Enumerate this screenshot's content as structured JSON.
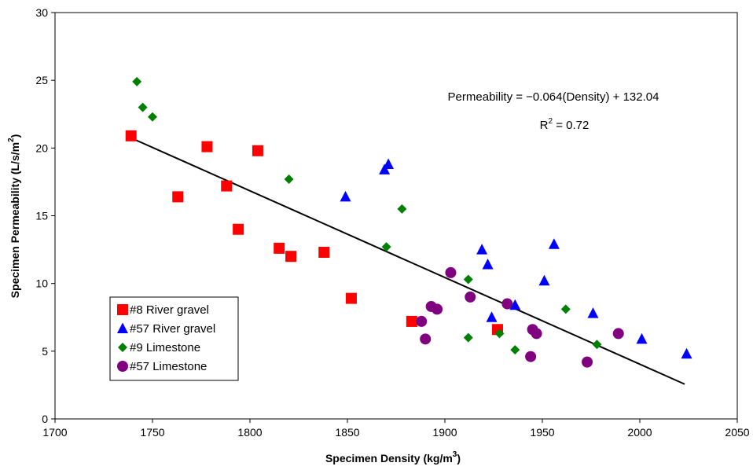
{
  "chart_data": {
    "type": "scatter",
    "title": "",
    "xlabel": "Specimen Density (kg/m",
    "xlabel_sup": "3",
    "xlabel_tail": ")",
    "ylabel": "Specimen Permeability (L/s/m",
    "ylabel_sup": "2",
    "ylabel_tail": ")",
    "xlim": [
      1700,
      2050
    ],
    "ylim": [
      0,
      30
    ],
    "x_ticks": [
      "1700",
      "1750",
      "1800",
      "1850",
      "1900",
      "1950",
      "2000",
      "2050"
    ],
    "y_ticks": [
      "0",
      "5",
      "10",
      "15",
      "20",
      "25",
      "30"
    ],
    "grid": false,
    "legend_position": "bottom-left",
    "series": [
      {
        "name": "#8 River gravel",
        "marker": "square",
        "color": "#ff0000",
        "points": [
          [
            1739,
            20.9
          ],
          [
            1763,
            16.4
          ],
          [
            1778,
            20.1
          ],
          [
            1788,
            17.2
          ],
          [
            1794,
            14.0
          ],
          [
            1804,
            19.8
          ],
          [
            1815,
            12.6
          ],
          [
            1821,
            12.0
          ],
          [
            1838,
            12.3
          ],
          [
            1852,
            8.9
          ],
          [
            1883,
            7.2
          ],
          [
            1927,
            6.6
          ]
        ]
      },
      {
        "name": "#57 River gravel",
        "marker": "triangle",
        "color": "#0000ff",
        "points": [
          [
            1849,
            16.4
          ],
          [
            1869,
            18.4
          ],
          [
            1871,
            18.8
          ],
          [
            1919,
            12.5
          ],
          [
            1922,
            11.4
          ],
          [
            1924,
            7.5
          ],
          [
            1936,
            8.4
          ],
          [
            1951,
            10.2
          ],
          [
            1956,
            12.9
          ],
          [
            1976,
            7.8
          ],
          [
            2001,
            5.9
          ],
          [
            2024,
            4.8
          ]
        ]
      },
      {
        "name": "#9 Limestone",
        "marker": "diamond",
        "color": "#008000",
        "points": [
          [
            1742,
            24.9
          ],
          [
            1745,
            23.0
          ],
          [
            1750,
            22.3
          ],
          [
            1820,
            17.7
          ],
          [
            1870,
            12.7
          ],
          [
            1878,
            15.5
          ],
          [
            1912,
            10.3
          ],
          [
            1912,
            6.0
          ],
          [
            1928,
            6.3
          ],
          [
            1936,
            5.1
          ],
          [
            1962,
            8.1
          ],
          [
            1978,
            5.5
          ]
        ]
      },
      {
        "name": "#57 Limestone",
        "marker": "circle",
        "color": "#800080",
        "points": [
          [
            1888,
            7.2
          ],
          [
            1890,
            5.9
          ],
          [
            1893,
            8.3
          ],
          [
            1896,
            8.1
          ],
          [
            1903,
            10.8
          ],
          [
            1913,
            9.0
          ],
          [
            1932,
            8.5
          ],
          [
            1944,
            4.6
          ],
          [
            1945,
            6.6
          ],
          [
            1947,
            6.3
          ],
          [
            1973,
            4.2
          ],
          [
            1989,
            6.3
          ]
        ]
      }
    ],
    "trendline": {
      "slope": -0.064,
      "intercept": 132.04,
      "x_range": [
        1739,
        2023
      ],
      "color": "#000000"
    },
    "annotations": {
      "equation": "Permeability = −0.064(Density) + 132.04",
      "r2_prefix": "R",
      "r2_sup": "2",
      "r2_value": " = 0.72"
    }
  }
}
